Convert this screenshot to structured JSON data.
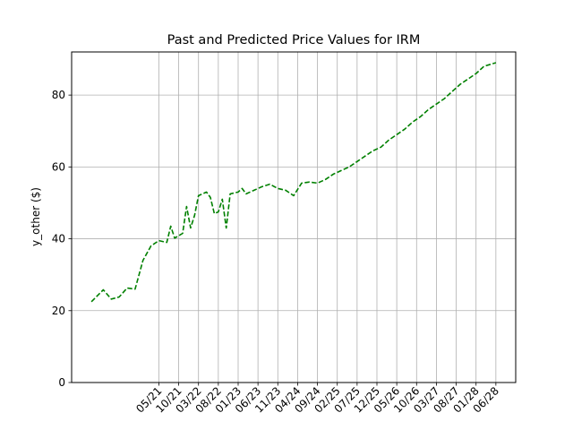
{
  "chart_data": {
    "type": "line",
    "title": "Past and Predicted Price Values for IRM",
    "xlabel": "",
    "ylabel": "y_other ($)",
    "ylim": [
      0,
      92
    ],
    "yticks": [
      0,
      20,
      40,
      60,
      80
    ],
    "xlim": [
      "2019-07",
      "2028-11"
    ],
    "xticks": [
      {
        "date": "2021-05",
        "label": "05/21"
      },
      {
        "date": "2021-10",
        "label": "10/21"
      },
      {
        "date": "2022-03",
        "label": "03/22"
      },
      {
        "date": "2022-08",
        "label": "08/22"
      },
      {
        "date": "2023-01",
        "label": "01/23"
      },
      {
        "date": "2023-06",
        "label": "06/23"
      },
      {
        "date": "2023-11",
        "label": "11/23"
      },
      {
        "date": "2024-04",
        "label": "04/24"
      },
      {
        "date": "2024-09",
        "label": "09/24"
      },
      {
        "date": "2025-02",
        "label": "02/25"
      },
      {
        "date": "2025-07",
        "label": "07/25"
      },
      {
        "date": "2025-12",
        "label": "12/25"
      },
      {
        "date": "2026-05",
        "label": "05/26"
      },
      {
        "date": "2026-10",
        "label": "10/26"
      },
      {
        "date": "2027-03",
        "label": "03/27"
      },
      {
        "date": "2027-08",
        "label": "08/27"
      },
      {
        "date": "2028-01",
        "label": "01/28"
      },
      {
        "date": "2028-06",
        "label": "06/28"
      }
    ],
    "grid": true,
    "series": [
      {
        "color": "#008000",
        "linestyle": "dashed",
        "x": [
          "2019-12",
          "2020-03",
          "2020-05",
          "2020-07",
          "2020-09",
          "2020-11",
          "2021-01",
          "2021-03",
          "2021-05",
          "2021-07",
          "2021-08",
          "2021-09",
          "2021-11",
          "2021-12",
          "2022-01",
          "2022-02",
          "2022-03",
          "2022-05",
          "2022-06",
          "2022-07",
          "2022-08",
          "2022-09",
          "2022-10",
          "2022-11",
          "2023-01",
          "2023-02",
          "2023-03",
          "2023-05",
          "2023-07",
          "2023-09",
          "2023-11",
          "2024-01",
          "2024-03",
          "2024-05",
          "2024-07",
          "2024-09",
          "2024-11",
          "2025-01",
          "2025-03",
          "2025-05",
          "2025-07",
          "2025-09",
          "2025-11",
          "2026-01",
          "2026-03",
          "2026-05",
          "2026-07",
          "2026-09",
          "2026-11",
          "2027-01",
          "2027-03",
          "2027-05",
          "2027-07",
          "2027-09",
          "2027-11",
          "2028-01",
          "2028-03",
          "2028-06"
        ],
        "y": [
          22.5,
          25.8,
          23.2,
          23.8,
          26.3,
          26.0,
          34.0,
          38.0,
          39.5,
          39.0,
          43.5,
          40.2,
          41.5,
          49.0,
          43.0,
          46.5,
          52.0,
          53.0,
          51.5,
          47.0,
          47.5,
          51.0,
          43.0,
          52.5,
          53.0,
          54.0,
          52.5,
          53.5,
          54.5,
          55.2,
          54.0,
          53.5,
          52.0,
          55.5,
          55.8,
          55.5,
          56.5,
          58.0,
          59.0,
          60.0,
          61.5,
          63.0,
          64.5,
          65.5,
          67.5,
          69.0,
          70.5,
          72.5,
          74.0,
          76.0,
          77.5,
          79.0,
          81.0,
          83.0,
          84.5,
          86.0,
          88.0,
          89.0
        ]
      }
    ]
  }
}
